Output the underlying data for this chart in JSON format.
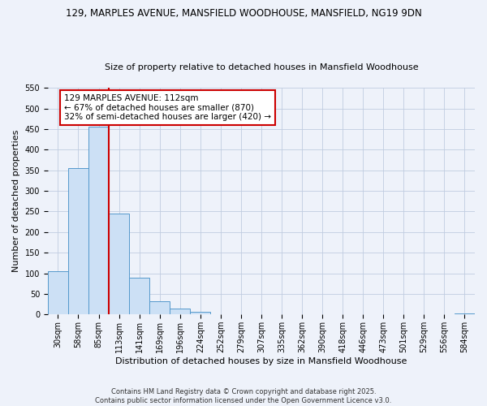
{
  "title": "129, MARPLES AVENUE, MANSFIELD WOODHOUSE, MANSFIELD, NG19 9DN",
  "subtitle": "Size of property relative to detached houses in Mansfield Woodhouse",
  "xlabel": "Distribution of detached houses by size in Mansfield Woodhouse",
  "ylabel": "Number of detached properties",
  "bin_labels": [
    "30sqm",
    "58sqm",
    "85sqm",
    "113sqm",
    "141sqm",
    "169sqm",
    "196sqm",
    "224sqm",
    "252sqm",
    "279sqm",
    "307sqm",
    "335sqm",
    "362sqm",
    "390sqm",
    "418sqm",
    "446sqm",
    "473sqm",
    "501sqm",
    "529sqm",
    "556sqm",
    "584sqm"
  ],
  "bin_values": [
    105,
    355,
    455,
    245,
    90,
    32,
    14,
    6,
    1,
    0,
    0,
    0,
    0,
    0,
    0,
    0,
    0,
    0,
    0,
    0,
    2
  ],
  "bar_color": "#cce0f5",
  "bar_edge_color": "#5599cc",
  "property_line_color": "#cc0000",
  "annotation_line1": "129 MARPLES AVENUE: 112sqm",
  "annotation_line2": "← 67% of detached houses are smaller (870)",
  "annotation_line3": "32% of semi-detached houses are larger (420) →",
  "annotation_box_color": "#ffffff",
  "annotation_box_edge": "#cc0000",
  "ylim": [
    0,
    550
  ],
  "yticks": [
    0,
    50,
    100,
    150,
    200,
    250,
    300,
    350,
    400,
    450,
    500,
    550
  ],
  "footer1": "Contains HM Land Registry data © Crown copyright and database right 2025.",
  "footer2": "Contains public sector information licensed under the Open Government Licence v3.0.",
  "background_color": "#eef2fa",
  "grid_color": "#c0cce0",
  "title_fontsize": 8.5,
  "subtitle_fontsize": 8,
  "xlabel_fontsize": 8,
  "ylabel_fontsize": 8,
  "tick_fontsize": 7,
  "annotation_fontsize": 7.5,
  "footer_fontsize": 6
}
